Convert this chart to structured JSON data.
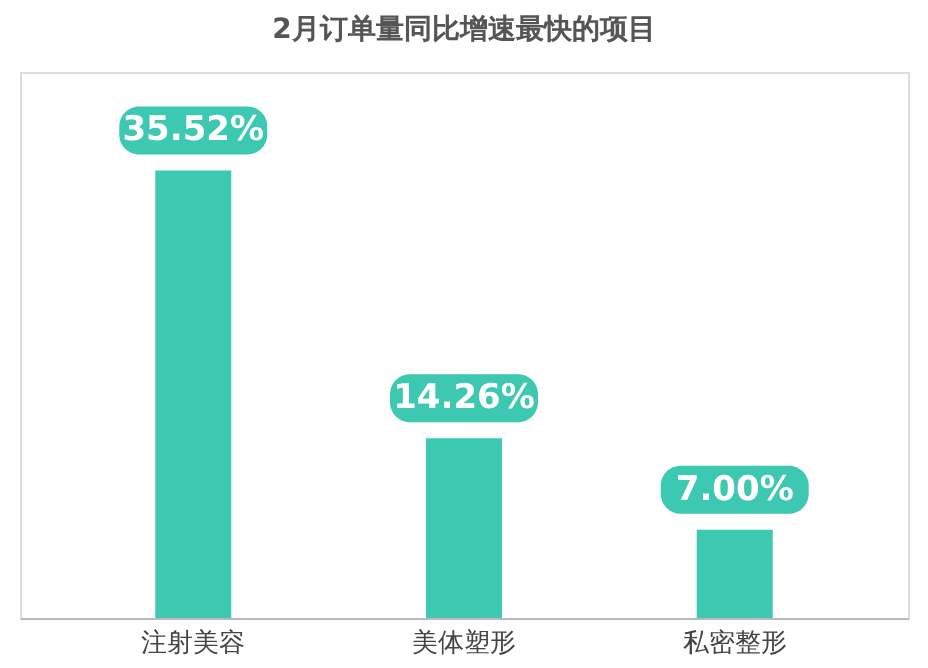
{
  "chart_data": {
    "type": "bar",
    "title": "2月订单量同比增速最快的项目",
    "categories": [
      "注射美容",
      "美体塑形",
      "私密整形"
    ],
    "values": [
      35.52,
      14.26,
      7.0
    ],
    "value_labels": [
      "35.52%",
      "14.26%",
      "7.00%"
    ],
    "color": "#3dc9b1",
    "grid": false
  }
}
